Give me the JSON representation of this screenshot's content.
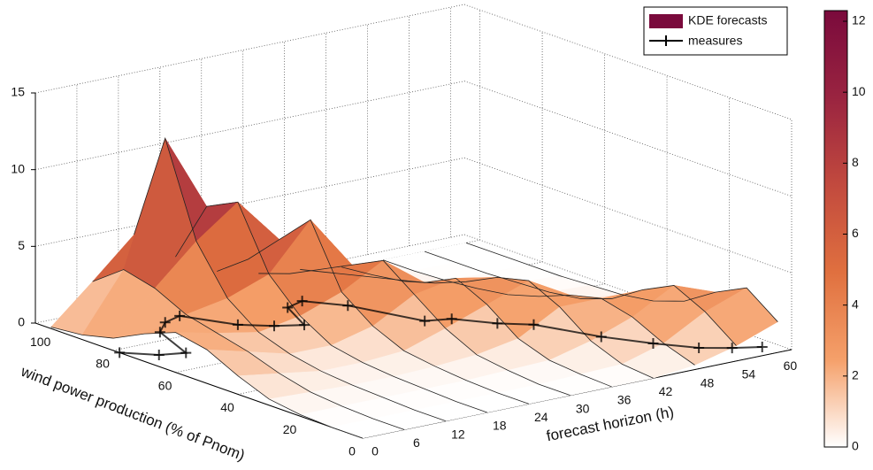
{
  "chart_data": {
    "type": "surface3d",
    "xlabel": "forecast horizon (h)",
    "ylabel": "wind power production (% of Pnom)",
    "horizons": [
      0,
      6,
      12,
      18,
      24,
      30,
      36,
      42,
      48,
      54,
      60
    ],
    "production": [
      0,
      10,
      20,
      30,
      40,
      50,
      60,
      70,
      80,
      90,
      100
    ],
    "density": [
      [
        0,
        0,
        0.1,
        0.4,
        1.2,
        2.2,
        2.6,
        1.8,
        0.8,
        0.3,
        0.1
      ],
      [
        0,
        0,
        0.1,
        0.3,
        0.8,
        1.5,
        2.0,
        2.5,
        3.5,
        4.0,
        2.5
      ],
      [
        0,
        0,
        0.1,
        0.2,
        0.4,
        0.8,
        1.5,
        3,
        6,
        12,
        5
      ],
      [
        0,
        0,
        0.1,
        0.2,
        0.4,
        0.8,
        2,
        4,
        8,
        7,
        3
      ],
      [
        0,
        0,
        0.1,
        0.3,
        0.6,
        1.5,
        3,
        7,
        5,
        3,
        1.5
      ],
      [
        0,
        0,
        0.2,
        0.5,
        1.5,
        3,
        4.5,
        3.5,
        2.5,
        1.5,
        0.8
      ],
      [
        0,
        0.1,
        0.3,
        1,
        2.5,
        3.5,
        2.5,
        2,
        1.5,
        1,
        0.5
      ],
      [
        0,
        0.2,
        1,
        2.5,
        3.5,
        3,
        2,
        1.2,
        0.6,
        0.3,
        0.1
      ],
      [
        0.3,
        1,
        2,
        2.5,
        2,
        1.2,
        0.6,
        0.3,
        0.1,
        0,
        0
      ],
      [
        1,
        2.5,
        3.5,
        2.5,
        1.2,
        0.5,
        0.2,
        0.1,
        0,
        0,
        0
      ],
      [
        2,
        3.5,
        2.5,
        1.2,
        0.5,
        0.2,
        0.1,
        0,
        0,
        0,
        0
      ]
    ],
    "measures": {
      "name": "measures",
      "color": "#000000",
      "x": [
        0,
        3,
        6,
        9,
        12,
        15,
        18,
        21,
        24,
        27,
        30,
        33,
        36,
        39,
        42,
        45,
        48,
        51,
        54,
        57,
        60
      ],
      "y": [
        78,
        72,
        70,
        85,
        90,
        92,
        80,
        75,
        72,
        84,
        86,
        78,
        60,
        58,
        50,
        45,
        30,
        20,
        12,
        8,
        5
      ]
    },
    "surface_name": "KDE forecasts",
    "surface_color": "#7a0a3c",
    "xlim": [
      0,
      62
    ],
    "xticks": [
      0,
      6,
      12,
      18,
      24,
      30,
      36,
      42,
      48,
      54,
      60
    ],
    "ylim": [
      0,
      105
    ],
    "yticks": [
      0,
      20,
      40,
      60,
      80,
      100
    ],
    "zlim": [
      0,
      15
    ],
    "zticks": [
      0,
      5,
      10,
      15
    ],
    "clim": [
      0,
      12.3
    ],
    "cticks": [
      0,
      2,
      4,
      6,
      8,
      10,
      12
    ],
    "colormap": [
      "#ffffff",
      "#f5a06a",
      "#e0703f",
      "#c24a3e",
      "#9a2440",
      "#7a0a3c"
    ],
    "grid": true
  }
}
